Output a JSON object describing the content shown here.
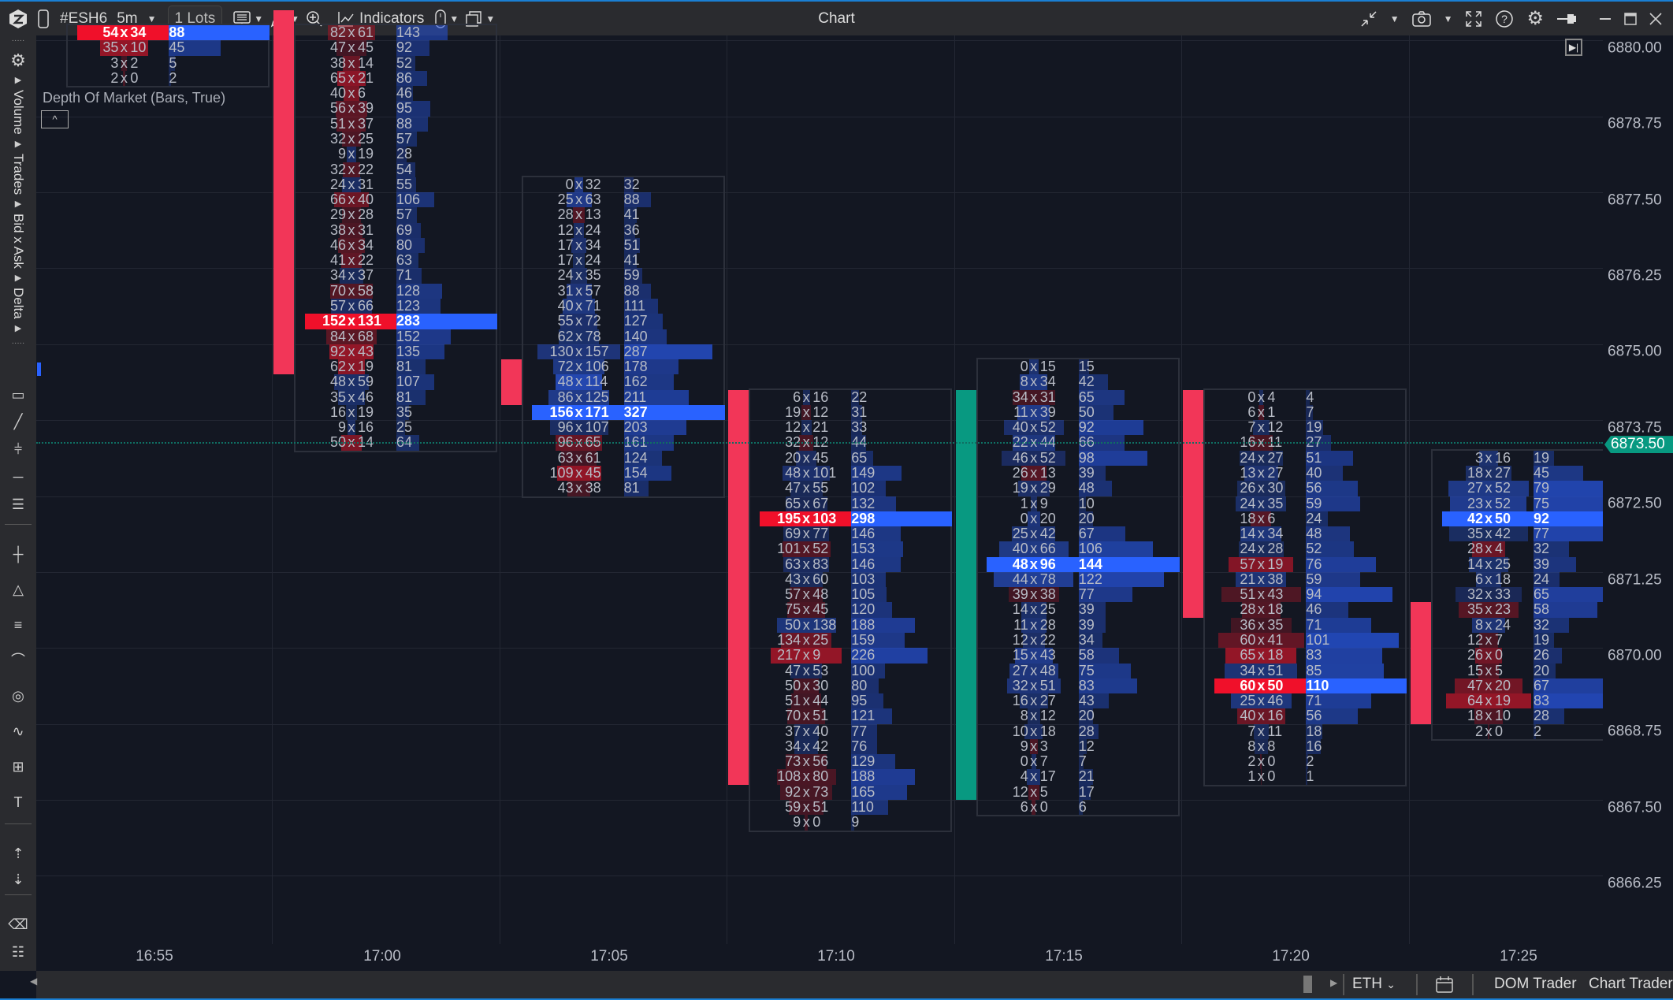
{
  "window": {
    "title": "Chart"
  },
  "toolbar": {
    "symbol": "#ESH6",
    "timeframe": "5m",
    "lots": "1 Lots",
    "indicators_label": "Indicators",
    "icons_left": [
      "app-logo-icon",
      "phone-icon",
      "template-icon",
      "pencil-icon",
      "zoom-in-icon",
      "indicators-icon",
      "mouse-icon",
      "windows-icon"
    ],
    "icons_right": [
      "compress-icon",
      "camera-icon",
      "fullscreen-icon",
      "help-icon",
      "gear-icon",
      "pin-icon",
      "minimize-icon",
      "maximize-icon",
      "close-icon"
    ]
  },
  "sidebar": {
    "tabs": [
      {
        "label": "Volume"
      },
      {
        "label": "Trades"
      },
      {
        "label": "Bid x Ask"
      },
      {
        "label": "Delta"
      }
    ],
    "tools": [
      "rectangle-icon",
      "line-icon",
      "fibonacci-icon",
      "horizontal-line-icon",
      "volume-profile-icon",
      "crosshair-icon",
      "triangle-icon",
      "pitchfork-icon",
      "curve-icon",
      "circle-icon",
      "pattern-icon",
      "shapes-icon",
      "text-icon",
      "sort-asc-icon",
      "sort-desc-icon",
      "eraser-icon",
      "object-list-icon"
    ]
  },
  "indicator_label": "Depth Of Market (Bars, True)",
  "collapse_glyph": "^",
  "colors": {
    "background": "#131722",
    "candle_up": "#089981",
    "candle_down": "#f23658",
    "poc_sell": "#f0102a",
    "poc_buy": "#2962ff",
    "current_price": "#089981",
    "accent": "#1a7fd4"
  },
  "chart_data": {
    "type": "footprint",
    "price_axis": {
      "range": [
        6866.0,
        6880.25
      ],
      "tick_step": 0.25,
      "labels": [
        "6880.00",
        "6878.75",
        "6877.50",
        "6876.25",
        "6875.00",
        "6873.75",
        "6872.50",
        "6871.25",
        "6870.00",
        "6868.75",
        "6867.50",
        "6866.25"
      ]
    },
    "current_price": "6873.50",
    "time_labels": [
      "16:55",
      "17:00",
      "17:05",
      "17:10",
      "17:15",
      "17:20",
      "17:25"
    ],
    "grid": true,
    "columns": [
      {
        "candle": null,
        "top_price": 6880.25,
        "rows": [
          [
            54,
            34,
            88
          ],
          [
            35,
            10,
            45
          ],
          [
            3,
            2,
            5
          ],
          [
            2,
            0,
            2
          ]
        ]
      },
      {
        "candle": {
          "open": 6880.5,
          "close": 6874.75
        },
        "top_price": 6880.25,
        "rows": [
          [
            82,
            61,
            143
          ],
          [
            47,
            45,
            92
          ],
          [
            38,
            14,
            52
          ],
          [
            65,
            21,
            86
          ],
          [
            40,
            6,
            46
          ],
          [
            56,
            39,
            95
          ],
          [
            51,
            37,
            88
          ],
          [
            32,
            25,
            57
          ],
          [
            9,
            19,
            28
          ],
          [
            32,
            22,
            54
          ],
          [
            24,
            31,
            55
          ],
          [
            66,
            40,
            106
          ],
          [
            29,
            28,
            57
          ],
          [
            38,
            31,
            69
          ],
          [
            46,
            34,
            80
          ],
          [
            41,
            22,
            63
          ],
          [
            34,
            37,
            71
          ],
          [
            70,
            58,
            128
          ],
          [
            57,
            66,
            123
          ],
          [
            152,
            131,
            283
          ],
          [
            84,
            68,
            152
          ],
          [
            92,
            43,
            135
          ],
          [
            62,
            19,
            81
          ],
          [
            48,
            59,
            107
          ],
          [
            35,
            46,
            81
          ],
          [
            16,
            19,
            35
          ],
          [
            9,
            16,
            25
          ],
          [
            50,
            14,
            64
          ]
        ]
      },
      {
        "candle": {
          "open": 6874.75,
          "close": 6874.25
        },
        "top_price": 6877.75,
        "rows": [
          [
            0,
            32,
            32
          ],
          [
            25,
            63,
            88
          ],
          [
            28,
            13,
            41
          ],
          [
            12,
            24,
            36
          ],
          [
            17,
            34,
            51
          ],
          [
            17,
            24,
            41
          ],
          [
            24,
            35,
            59
          ],
          [
            31,
            57,
            88
          ],
          [
            40,
            71,
            111
          ],
          [
            55,
            72,
            127
          ],
          [
            62,
            78,
            140
          ],
          [
            130,
            157,
            287
          ],
          [
            72,
            106,
            178
          ],
          [
            48,
            114,
            162
          ],
          [
            86,
            125,
            211
          ],
          [
            156,
            171,
            327
          ],
          [
            96,
            107,
            203
          ],
          [
            96,
            65,
            161
          ],
          [
            63,
            61,
            124
          ],
          [
            109,
            45,
            154
          ],
          [
            43,
            38,
            81
          ]
        ]
      },
      {
        "candle": {
          "open": 6874.25,
          "close": 6868.0
        },
        "top_price": 6874.25,
        "rows": [
          [
            6,
            16,
            22
          ],
          [
            19,
            12,
            31
          ],
          [
            12,
            21,
            33
          ],
          [
            32,
            12,
            44
          ],
          [
            20,
            45,
            65
          ],
          [
            48,
            101,
            149
          ],
          [
            47,
            55,
            102
          ],
          [
            65,
            67,
            132
          ],
          [
            195,
            103,
            298
          ],
          [
            69,
            77,
            146
          ],
          [
            101,
            52,
            153
          ],
          [
            63,
            83,
            146
          ],
          [
            43,
            60,
            103
          ],
          [
            57,
            48,
            105
          ],
          [
            75,
            45,
            120
          ],
          [
            50,
            138,
            188
          ],
          [
            134,
            25,
            159
          ],
          [
            217,
            9,
            226
          ],
          [
            47,
            53,
            100
          ],
          [
            50,
            30,
            80
          ],
          [
            51,
            44,
            95
          ],
          [
            70,
            51,
            121
          ],
          [
            37,
            40,
            77
          ],
          [
            34,
            42,
            76
          ],
          [
            73,
            56,
            129
          ],
          [
            108,
            80,
            188
          ],
          [
            92,
            73,
            165
          ],
          [
            59,
            51,
            110
          ],
          [
            9,
            0,
            9
          ]
        ]
      },
      {
        "candle": {
          "open": 6867.75,
          "close": 6874.25
        },
        "top_price": 6874.75,
        "rows": [
          [
            0,
            15,
            15
          ],
          [
            8,
            34,
            42
          ],
          [
            34,
            31,
            65
          ],
          [
            11,
            39,
            50
          ],
          [
            40,
            52,
            92
          ],
          [
            22,
            44,
            66
          ],
          [
            46,
            52,
            98
          ],
          [
            26,
            13,
            39
          ],
          [
            19,
            29,
            48
          ],
          [
            1,
            9,
            10
          ],
          [
            0,
            20,
            20
          ],
          [
            25,
            42,
            67
          ],
          [
            40,
            66,
            106
          ],
          [
            48,
            96,
            144
          ],
          [
            44,
            78,
            122
          ],
          [
            39,
            38,
            77
          ],
          [
            14,
            25,
            39
          ],
          [
            11,
            28,
            39
          ],
          [
            12,
            22,
            34
          ],
          [
            15,
            43,
            58
          ],
          [
            27,
            48,
            75
          ],
          [
            32,
            51,
            83
          ],
          [
            16,
            27,
            43
          ],
          [
            8,
            12,
            20
          ],
          [
            10,
            18,
            28
          ],
          [
            9,
            3,
            12
          ],
          [
            0,
            7,
            7
          ],
          [
            4,
            17,
            21
          ],
          [
            12,
            5,
            17
          ],
          [
            6,
            0,
            6
          ]
        ]
      },
      {
        "candle": {
          "open": 6874.25,
          "close": 6870.75
        },
        "top_price": 6874.25,
        "rows": [
          [
            0,
            4,
            4
          ],
          [
            6,
            1,
            7
          ],
          [
            7,
            12,
            19
          ],
          [
            16,
            11,
            27
          ],
          [
            24,
            27,
            51
          ],
          [
            13,
            27,
            40
          ],
          [
            26,
            30,
            56
          ],
          [
            24,
            35,
            59
          ],
          [
            18,
            6,
            24
          ],
          [
            14,
            34,
            48
          ],
          [
            24,
            28,
            52
          ],
          [
            57,
            19,
            76
          ],
          [
            21,
            38,
            59
          ],
          [
            51,
            43,
            94
          ],
          [
            28,
            18,
            46
          ],
          [
            36,
            35,
            71
          ],
          [
            60,
            41,
            101
          ],
          [
            65,
            18,
            83
          ],
          [
            34,
            51,
            85
          ],
          [
            60,
            50,
            110
          ],
          [
            25,
            46,
            71
          ],
          [
            40,
            16,
            56
          ],
          [
            7,
            11,
            18
          ],
          [
            8,
            8,
            16
          ],
          [
            2,
            0,
            2
          ],
          [
            1,
            0,
            1
          ]
        ]
      },
      {
        "candle": {
          "open": 6870.75,
          "close": 6869.0
        },
        "top_price": 6873.25,
        "rows": [
          [
            3,
            16,
            19
          ],
          [
            18,
            27,
            45
          ],
          [
            27,
            52,
            79
          ],
          [
            23,
            52,
            75
          ],
          [
            42,
            50,
            92
          ],
          [
            35,
            42,
            77
          ],
          [
            28,
            4,
            32
          ],
          [
            14,
            25,
            39
          ],
          [
            6,
            18,
            24
          ],
          [
            32,
            33,
            65
          ],
          [
            35,
            23,
            58
          ],
          [
            8,
            24,
            32
          ],
          [
            12,
            7,
            19
          ],
          [
            26,
            0,
            26
          ],
          [
            15,
            5,
            20
          ],
          [
            47,
            20,
            67
          ],
          [
            64,
            19,
            83
          ],
          [
            18,
            10,
            28
          ],
          [
            2,
            0,
            2
          ]
        ]
      }
    ]
  },
  "bottombar": {
    "session": "ETH",
    "dom_trader": "DOM Trader",
    "chart_trader": "Chart Trader"
  }
}
